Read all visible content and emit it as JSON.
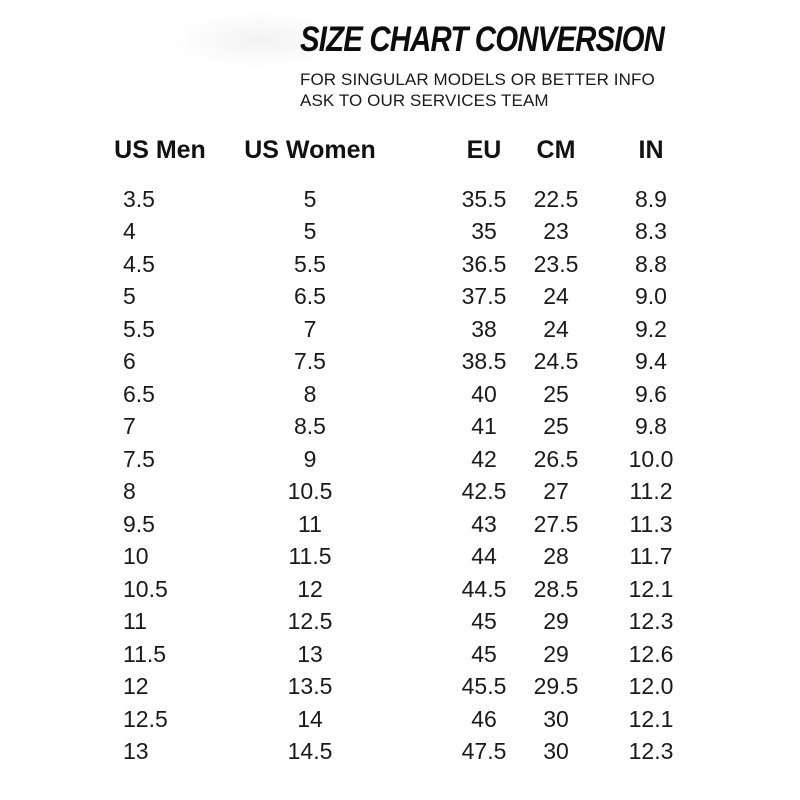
{
  "header": {
    "title": "SIZE CHART CONVERSION",
    "subtitle_line1": "FOR SINGULAR MODELS OR BETTER INFO",
    "subtitle_line2": "ASK TO OUR SERVICES TEAM"
  },
  "colors": {
    "background": "#ffffff",
    "text": "#1a1a1a",
    "title": "#0d0d0d"
  },
  "chart_data": {
    "type": "table",
    "title": "SIZE CHART CONVERSION",
    "columns": [
      "US Men",
      "US Women",
      "EU",
      "CM",
      "IN"
    ],
    "rows": [
      [
        "3.5",
        "5",
        "35.5",
        "22.5",
        "8.9"
      ],
      [
        "4",
        "5",
        "35",
        "23",
        "8.3"
      ],
      [
        "4.5",
        "5.5",
        "36.5",
        "23.5",
        "8.8"
      ],
      [
        "5",
        "6.5",
        "37.5",
        "24",
        "9.0"
      ],
      [
        "5.5",
        "7",
        "38",
        "24",
        "9.2"
      ],
      [
        "6",
        "7.5",
        "38.5",
        "24.5",
        "9.4"
      ],
      [
        "6.5",
        "8",
        "40",
        "25",
        "9.6"
      ],
      [
        "7",
        "8.5",
        "41",
        "25",
        "9.8"
      ],
      [
        "7.5",
        "9",
        "42",
        "26.5",
        "10.0"
      ],
      [
        "8",
        "10.5",
        "42.5",
        "27",
        "11.2"
      ],
      [
        "9.5",
        "11",
        "43",
        "27.5",
        "11.3"
      ],
      [
        "10",
        "11.5",
        "44",
        "28",
        "11.7"
      ],
      [
        "10.5",
        "12",
        "44.5",
        "28.5",
        "12.1"
      ],
      [
        "11",
        "12.5",
        "45",
        "29",
        "12.3"
      ],
      [
        "11.5",
        "13",
        "45",
        "29",
        "12.6"
      ],
      [
        "12",
        "13.5",
        "45.5",
        "29.5",
        "12.0"
      ],
      [
        "12.5",
        "14",
        "46",
        "30",
        "12.1"
      ],
      [
        "13",
        "14.5",
        "47.5",
        "30",
        "12.3"
      ]
    ]
  }
}
